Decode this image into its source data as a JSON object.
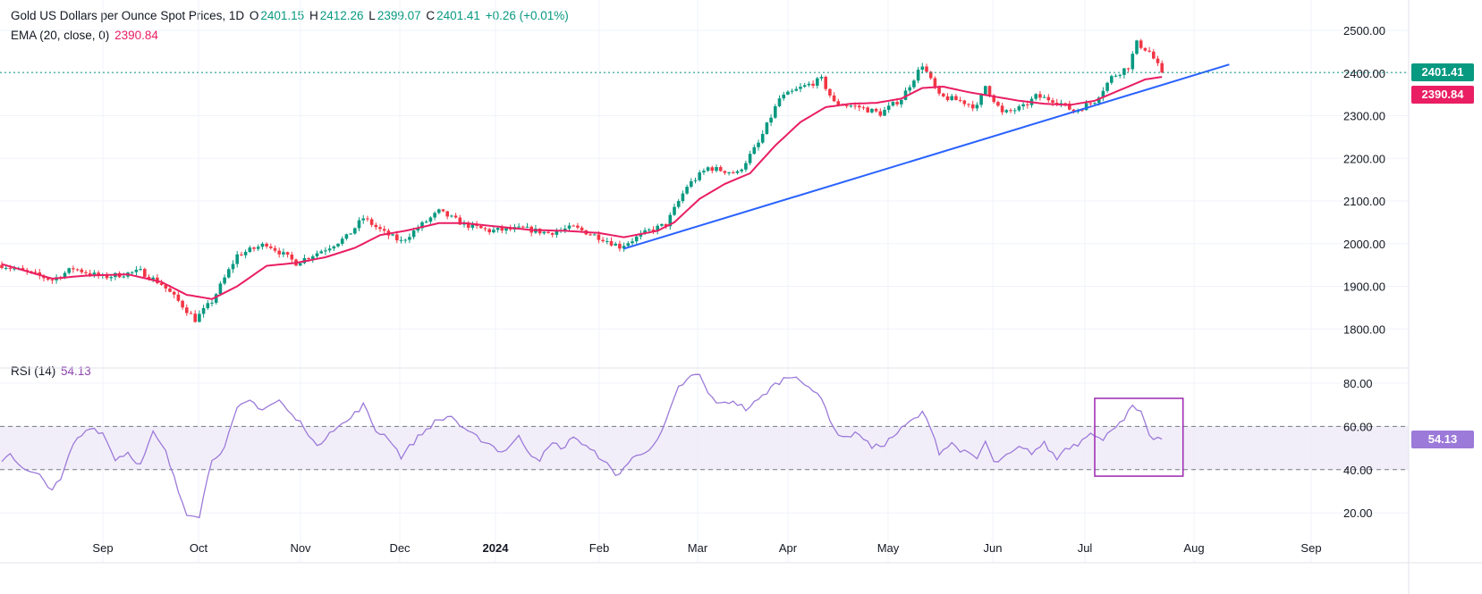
{
  "header": {
    "symbol": "Gold US Dollars per Ounce Spot Prices, 1D",
    "o_label": "O",
    "o_value": "2401.15",
    "h_label": "H",
    "h_value": "2412.26",
    "l_label": "L",
    "l_value": "2399.07",
    "c_label": "C",
    "c_value": "2401.41",
    "change": "+0.26 (+0.01%)"
  },
  "ema_legend": {
    "label": "EMA (20, close, 0)",
    "value": "2390.84"
  },
  "rsi_legend": {
    "label": "RSI (14)",
    "value": "54.13"
  },
  "badges": {
    "price": "2401.41",
    "ema": "2390.84",
    "rsi": "54.13"
  },
  "colors": {
    "up": "#089981",
    "down": "#f23645",
    "ema": "#e91e63",
    "trend": "#2962ff",
    "rsi": "#9c7ad9",
    "box": "#9c27b0"
  },
  "chart_data": [
    {
      "type": "candlestick",
      "title": "Gold US Dollars per Ounce Spot Prices, 1D",
      "yticks": [
        "2500.00",
        "2400.00",
        "2300.00",
        "2200.00",
        "2100.00",
        "2000.00",
        "1900.00",
        "1800.00"
      ],
      "ylim": [
        1770,
        2530
      ],
      "xticks": [
        "Sep",
        "Oct",
        "Nov",
        "Dec",
        "2024",
        "Feb",
        "Mar",
        "Apr",
        "May",
        "Jun",
        "Jul",
        "Aug",
        "Sep"
      ],
      "anchors": [
        {
          "d": 0,
          "p": 1950
        },
        {
          "d": 12,
          "p": 1915
        },
        {
          "d": 17,
          "p": 1942
        },
        {
          "d": 24,
          "p": 1921
        },
        {
          "d": 33,
          "p": 1935
        },
        {
          "d": 38,
          "p": 1905
        },
        {
          "d": 42,
          "p": 1865
        },
        {
          "d": 46,
          "p": 1822
        },
        {
          "d": 50,
          "p": 1865
        },
        {
          "d": 56,
          "p": 1973
        },
        {
          "d": 63,
          "p": 2000
        },
        {
          "d": 70,
          "p": 1955
        },
        {
          "d": 77,
          "p": 1988
        },
        {
          "d": 82,
          "p": 2015
        },
        {
          "d": 86,
          "p": 2060
        },
        {
          "d": 91,
          "p": 2025
        },
        {
          "d": 95,
          "p": 2005
        },
        {
          "d": 100,
          "p": 2045
        },
        {
          "d": 104,
          "p": 2075
        },
        {
          "d": 110,
          "p": 2045
        },
        {
          "d": 116,
          "p": 2030
        },
        {
          "d": 124,
          "p": 2035
        },
        {
          "d": 130,
          "p": 2025
        },
        {
          "d": 136,
          "p": 2038
        },
        {
          "d": 143,
          "p": 2012
        },
        {
          "d": 147,
          "p": 1993
        },
        {
          "d": 154,
          "p": 2030
        },
        {
          "d": 158,
          "p": 2045
        },
        {
          "d": 163,
          "p": 2135
        },
        {
          "d": 168,
          "p": 2178
        },
        {
          "d": 175,
          "p": 2165
        },
        {
          "d": 180,
          "p": 2235
        },
        {
          "d": 185,
          "p": 2340
        },
        {
          "d": 190,
          "p": 2365
        },
        {
          "d": 195,
          "p": 2385
        },
        {
          "d": 198,
          "p": 2330
        },
        {
          "d": 204,
          "p": 2320
        },
        {
          "d": 209,
          "p": 2305
        },
        {
          "d": 214,
          "p": 2340
        },
        {
          "d": 219,
          "p": 2420
        },
        {
          "d": 223,
          "p": 2345
        },
        {
          "d": 228,
          "p": 2335
        },
        {
          "d": 232,
          "p": 2320
        },
        {
          "d": 234,
          "p": 2370
        },
        {
          "d": 238,
          "p": 2305
        },
        {
          "d": 243,
          "p": 2320
        },
        {
          "d": 246,
          "p": 2345
        },
        {
          "d": 251,
          "p": 2335
        },
        {
          "d": 255,
          "p": 2310
        },
        {
          "d": 260,
          "p": 2335
        },
        {
          "d": 264,
          "p": 2390
        },
        {
          "d": 268,
          "p": 2415
        },
        {
          "d": 270,
          "p": 2470
        },
        {
          "d": 273,
          "p": 2450
        },
        {
          "d": 276,
          "p": 2401
        }
      ],
      "ema_anchors": [
        {
          "d": 0,
          "p": 1952
        },
        {
          "d": 12,
          "p": 1918
        },
        {
          "d": 20,
          "p": 1925
        },
        {
          "d": 30,
          "p": 1928
        },
        {
          "d": 38,
          "p": 1910
        },
        {
          "d": 44,
          "p": 1880
        },
        {
          "d": 50,
          "p": 1870
        },
        {
          "d": 56,
          "p": 1900
        },
        {
          "d": 63,
          "p": 1948
        },
        {
          "d": 70,
          "p": 1955
        },
        {
          "d": 77,
          "p": 1968
        },
        {
          "d": 84,
          "p": 1990
        },
        {
          "d": 90,
          "p": 2020
        },
        {
          "d": 96,
          "p": 2030
        },
        {
          "d": 104,
          "p": 2048
        },
        {
          "d": 110,
          "p": 2048
        },
        {
          "d": 118,
          "p": 2040
        },
        {
          "d": 126,
          "p": 2032
        },
        {
          "d": 134,
          "p": 2030
        },
        {
          "d": 142,
          "p": 2025
        },
        {
          "d": 148,
          "p": 2015
        },
        {
          "d": 156,
          "p": 2030
        },
        {
          "d": 160,
          "p": 2050
        },
        {
          "d": 166,
          "p": 2105
        },
        {
          "d": 172,
          "p": 2140
        },
        {
          "d": 178,
          "p": 2165
        },
        {
          "d": 184,
          "p": 2230
        },
        {
          "d": 190,
          "p": 2285
        },
        {
          "d": 196,
          "p": 2320
        },
        {
          "d": 202,
          "p": 2328
        },
        {
          "d": 208,
          "p": 2330
        },
        {
          "d": 214,
          "p": 2340
        },
        {
          "d": 219,
          "p": 2365
        },
        {
          "d": 224,
          "p": 2368
        },
        {
          "d": 230,
          "p": 2355
        },
        {
          "d": 236,
          "p": 2345
        },
        {
          "d": 242,
          "p": 2335
        },
        {
          "d": 248,
          "p": 2328
        },
        {
          "d": 254,
          "p": 2325
        },
        {
          "d": 260,
          "p": 2335
        },
        {
          "d": 266,
          "p": 2360
        },
        {
          "d": 272,
          "p": 2385
        },
        {
          "d": 276,
          "p": 2390.84
        }
      ],
      "trendline": [
        {
          "d": 148,
          "p": 1988
        },
        {
          "d": 292,
          "p": 2420
        }
      ],
      "last_close": 2401.41,
      "ema_last": 2390.84
    },
    {
      "type": "line",
      "title": "RSI (14)",
      "yticks": [
        "80.00",
        "60.00",
        "40.00",
        "20.00"
      ],
      "ylim": [
        11,
        90
      ],
      "band": [
        40,
        60
      ],
      "anchors": [
        {
          "d": 0,
          "r": 44
        },
        {
          "d": 2,
          "r": 48
        },
        {
          "d": 5,
          "r": 40
        },
        {
          "d": 9,
          "r": 37
        },
        {
          "d": 12,
          "r": 31
        },
        {
          "d": 14,
          "r": 35
        },
        {
          "d": 17,
          "r": 52
        },
        {
          "d": 21,
          "r": 60
        },
        {
          "d": 24,
          "r": 57
        },
        {
          "d": 27,
          "r": 45
        },
        {
          "d": 30,
          "r": 48
        },
        {
          "d": 33,
          "r": 42
        },
        {
          "d": 36,
          "r": 57
        },
        {
          "d": 39,
          "r": 48
        },
        {
          "d": 42,
          "r": 30
        },
        {
          "d": 44,
          "r": 20
        },
        {
          "d": 47,
          "r": 19
        },
        {
          "d": 50,
          "r": 45
        },
        {
          "d": 53,
          "r": 50
        },
        {
          "d": 56,
          "r": 68
        },
        {
          "d": 59,
          "r": 72
        },
        {
          "d": 62,
          "r": 68
        },
        {
          "d": 66,
          "r": 72
        },
        {
          "d": 69,
          "r": 65
        },
        {
          "d": 72,
          "r": 60
        },
        {
          "d": 75,
          "r": 50
        },
        {
          "d": 78,
          "r": 58
        },
        {
          "d": 82,
          "r": 62
        },
        {
          "d": 86,
          "r": 70
        },
        {
          "d": 89,
          "r": 58
        },
        {
          "d": 92,
          "r": 55
        },
        {
          "d": 95,
          "r": 46
        },
        {
          "d": 99,
          "r": 55
        },
        {
          "d": 103,
          "r": 62
        },
        {
          "d": 107,
          "r": 65
        },
        {
          "d": 110,
          "r": 58
        },
        {
          "d": 113,
          "r": 55
        },
        {
          "d": 116,
          "r": 52
        },
        {
          "d": 119,
          "r": 48
        },
        {
          "d": 123,
          "r": 55
        },
        {
          "d": 126,
          "r": 47
        },
        {
          "d": 128,
          "r": 45
        },
        {
          "d": 131,
          "r": 52
        },
        {
          "d": 134,
          "r": 50
        },
        {
          "d": 136,
          "r": 56
        },
        {
          "d": 138,
          "r": 52
        },
        {
          "d": 140,
          "r": 49
        },
        {
          "d": 143,
          "r": 45
        },
        {
          "d": 146,
          "r": 37
        },
        {
          "d": 150,
          "r": 45
        },
        {
          "d": 154,
          "r": 50
        },
        {
          "d": 156,
          "r": 53
        },
        {
          "d": 158,
          "r": 62
        },
        {
          "d": 161,
          "r": 78
        },
        {
          "d": 164,
          "r": 83
        },
        {
          "d": 166,
          "r": 84
        },
        {
          "d": 168,
          "r": 75
        },
        {
          "d": 171,
          "r": 70
        },
        {
          "d": 174,
          "r": 72
        },
        {
          "d": 177,
          "r": 68
        },
        {
          "d": 180,
          "r": 72
        },
        {
          "d": 183,
          "r": 78
        },
        {
          "d": 186,
          "r": 82
        },
        {
          "d": 189,
          "r": 84
        },
        {
          "d": 192,
          "r": 77
        },
        {
          "d": 195,
          "r": 74
        },
        {
          "d": 198,
          "r": 58
        },
        {
          "d": 201,
          "r": 55
        },
        {
          "d": 204,
          "r": 57
        },
        {
          "d": 207,
          "r": 50
        },
        {
          "d": 210,
          "r": 52
        },
        {
          "d": 213,
          "r": 57
        },
        {
          "d": 216,
          "r": 62
        },
        {
          "d": 219,
          "r": 66
        },
        {
          "d": 221,
          "r": 60
        },
        {
          "d": 223,
          "r": 48
        },
        {
          "d": 226,
          "r": 52
        },
        {
          "d": 229,
          "r": 48
        },
        {
          "d": 232,
          "r": 45
        },
        {
          "d": 234,
          "r": 53
        },
        {
          "d": 236,
          "r": 43
        },
        {
          "d": 239,
          "r": 46
        },
        {
          "d": 242,
          "r": 50
        },
        {
          "d": 245,
          "r": 48
        },
        {
          "d": 248,
          "r": 52
        },
        {
          "d": 251,
          "r": 45
        },
        {
          "d": 253,
          "r": 50
        },
        {
          "d": 256,
          "r": 52
        },
        {
          "d": 259,
          "r": 58
        },
        {
          "d": 262,
          "r": 53
        },
        {
          "d": 264,
          "r": 59
        },
        {
          "d": 267,
          "r": 64
        },
        {
          "d": 269,
          "r": 69
        },
        {
          "d": 271,
          "r": 66
        },
        {
          "d": 273,
          "r": 55
        },
        {
          "d": 276,
          "r": 54.13
        }
      ],
      "last_value": 54.13
    }
  ]
}
